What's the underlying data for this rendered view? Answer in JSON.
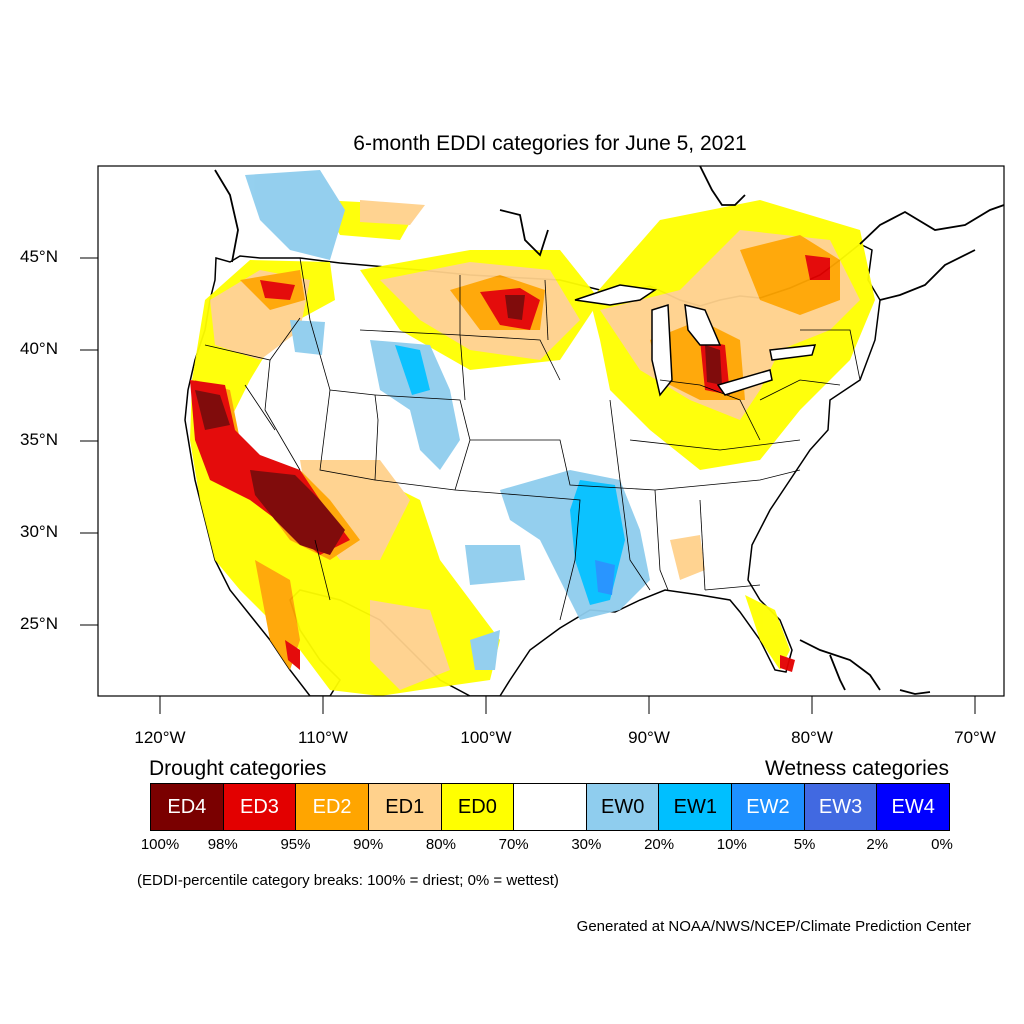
{
  "title": "6-month EDDI categories for June 5, 2021",
  "map": {
    "lat_labels": [
      "45°N",
      "40°N",
      "35°N",
      "30°N",
      "25°N"
    ],
    "lon_labels": [
      "120°W",
      "110°W",
      "100°W",
      "90°W",
      "80°W",
      "70°W"
    ]
  },
  "legend": {
    "drought_heading": "Drought categories",
    "wetness_heading": "Wetness categories",
    "categories": [
      {
        "label": "ED4",
        "color": "#7a0000",
        "text_color": "#ffffff"
      },
      {
        "label": "ED3",
        "color": "#e30000",
        "text_color": "#ffffff"
      },
      {
        "label": "ED2",
        "color": "#ffa500",
        "text_color": "#ffffff"
      },
      {
        "label": "ED1",
        "color": "#ffd18c",
        "text_color": "#000000"
      },
      {
        "label": "ED0",
        "color": "#ffff00",
        "text_color": "#000000"
      },
      {
        "label": "",
        "color": "#ffffff",
        "text_color": "#000000"
      },
      {
        "label": "EW0",
        "color": "#8fcdee",
        "text_color": "#000000"
      },
      {
        "label": "EW1",
        "color": "#00bfff",
        "text_color": "#000000"
      },
      {
        "label": "EW2",
        "color": "#1e90ff",
        "text_color": "#ffffff"
      },
      {
        "label": "EW3",
        "color": "#4169e1",
        "text_color": "#ffffff"
      },
      {
        "label": "EW4",
        "color": "#0000ff",
        "text_color": "#ffffff"
      }
    ],
    "percentile_breaks": [
      "100%",
      "98%",
      "95%",
      "90%",
      "80%",
      "70%",
      "30%",
      "20%",
      "10%",
      "5%",
      "2%",
      "0%"
    ]
  },
  "note": "(EDDI-percentile category breaks: 100% = driest; 0% = wettest)",
  "credit": "Generated at NOAA/NWS/NCEP/Climate Prediction Center"
}
